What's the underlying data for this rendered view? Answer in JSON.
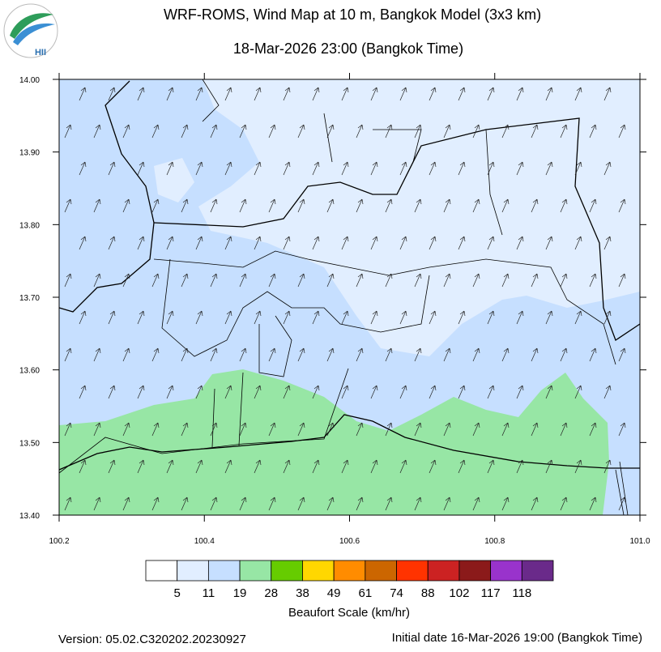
{
  "header": {
    "title": "WRF-ROMS, Wind Map at 10 m, Bangkok Model (3x3 km)",
    "subtitle": "18-Mar-2026 23:00 (Bangkok Time)",
    "logo": "HII"
  },
  "map": {
    "xlim": [
      100.2,
      101.0
    ],
    "ylim": [
      13.4,
      14.0
    ],
    "xticks": [
      {
        "value": 100.2,
        "label": "100.2"
      },
      {
        "value": 100.4,
        "label": "100.4"
      },
      {
        "value": 100.6,
        "label": "100.6"
      },
      {
        "value": 100.8,
        "label": "100.8"
      },
      {
        "value": 101.0,
        "label": "101.0"
      }
    ],
    "yticks": [
      {
        "value": 13.4,
        "label": "13.40"
      },
      {
        "value": 13.5,
        "label": "13.50"
      },
      {
        "value": 13.6,
        "label": "13.60"
      },
      {
        "value": 13.7,
        "label": "13.70"
      },
      {
        "value": 13.8,
        "label": "13.80"
      },
      {
        "value": 13.9,
        "label": "13.90"
      },
      {
        "value": 14.0,
        "label": "14.00"
      }
    ]
  },
  "colorbar": {
    "title": "Beaufort Scale (km/hr)",
    "levels": [
      5,
      11,
      19,
      28,
      38,
      49,
      61,
      74,
      88,
      102,
      117,
      118
    ],
    "colors": [
      "#ffffff",
      "#e1eeff",
      "#c6dfff",
      "#97e6a5",
      "#66cc00",
      "#ffd700",
      "#ff8c00",
      "#cc6600",
      "#ff3300",
      "#cc2222",
      "#8b1a1a",
      "#9933cc",
      "#6a2a8a"
    ]
  },
  "footer": {
    "version": "Version: 05.02.C320202.20230927",
    "initial_date": "Initial date 16-Mar-2026 19:00 (Bangkok Time)"
  }
}
